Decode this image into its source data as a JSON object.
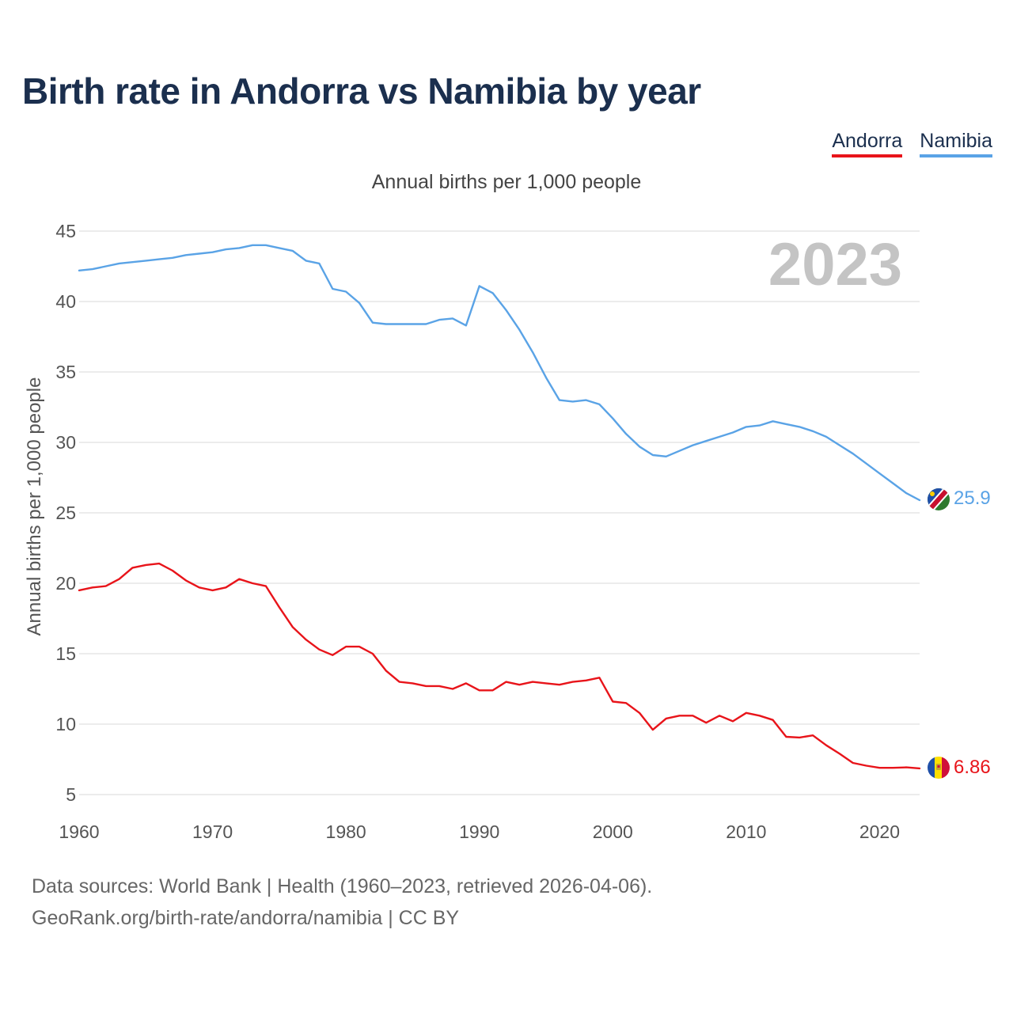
{
  "header": {
    "title": "Birth rate in Andorra vs Namibia by year",
    "subtitle": "Annual births per 1,000 people"
  },
  "legend": [
    {
      "label": "Andorra",
      "color": "#e8141a"
    },
    {
      "label": "Namibia",
      "color": "#5aa3e6"
    }
  ],
  "footer": {
    "line1": "Data sources: World Bank | Health (1960–2023, retrieved 2026-04-06).",
    "line2": "GeoRank.org/birth-rate/andorra/namibia | CC BY"
  },
  "chart_data": {
    "type": "line",
    "title": "Birth rate in Andorra vs Namibia by year",
    "ylabel": "Annual births per 1,000 people",
    "xlabel": "",
    "year_label": "2023",
    "xlim": [
      1960,
      2023
    ],
    "ylim": [
      5,
      45
    ],
    "x_ticks": [
      1960,
      1970,
      1980,
      1990,
      2000,
      2010,
      2020
    ],
    "y_ticks": [
      5,
      10,
      15,
      20,
      25,
      30,
      35,
      40,
      45
    ],
    "grid": true,
    "legend_position": "top-right",
    "x": [
      1960,
      1961,
      1962,
      1963,
      1964,
      1965,
      1966,
      1967,
      1968,
      1969,
      1970,
      1971,
      1972,
      1973,
      1974,
      1975,
      1976,
      1977,
      1978,
      1979,
      1980,
      1981,
      1982,
      1983,
      1984,
      1985,
      1986,
      1987,
      1988,
      1989,
      1990,
      1991,
      1992,
      1993,
      1994,
      1995,
      1996,
      1997,
      1998,
      1999,
      2000,
      2001,
      2002,
      2003,
      2004,
      2005,
      2006,
      2007,
      2008,
      2009,
      2010,
      2011,
      2012,
      2013,
      2014,
      2015,
      2016,
      2017,
      2018,
      2019,
      2020,
      2021,
      2022,
      2023
    ],
    "series": [
      {
        "name": "Andorra",
        "color": "#e8141a",
        "end_label": "6.86",
        "values": [
          19.5,
          19.7,
          19.8,
          20.3,
          21.1,
          21.3,
          21.4,
          20.9,
          20.2,
          19.7,
          19.5,
          19.7,
          20.3,
          20.0,
          19.8,
          18.3,
          16.9,
          16.0,
          15.3,
          14.9,
          15.5,
          15.5,
          15.0,
          13.8,
          13.0,
          12.9,
          12.7,
          12.7,
          12.5,
          12.9,
          12.4,
          12.4,
          13.0,
          12.8,
          13.0,
          12.9,
          12.8,
          13.0,
          13.1,
          13.3,
          11.6,
          11.5,
          10.8,
          9.6,
          10.4,
          10.6,
          10.6,
          10.1,
          10.6,
          10.2,
          10.8,
          10.6,
          10.3,
          9.1,
          9.05,
          9.2,
          8.5,
          7.9,
          7.25,
          7.05,
          6.9,
          6.9,
          6.93,
          6.86
        ]
      },
      {
        "name": "Namibia",
        "color": "#5aa3e6",
        "end_label": "25.9",
        "values": [
          42.2,
          42.3,
          42.5,
          42.7,
          42.8,
          42.9,
          43.0,
          43.1,
          43.3,
          43.4,
          43.5,
          43.7,
          43.8,
          44.0,
          44.0,
          43.8,
          43.6,
          42.9,
          42.7,
          40.9,
          40.7,
          39.9,
          38.5,
          38.4,
          38.4,
          38.4,
          38.4,
          38.7,
          38.8,
          38.3,
          41.1,
          40.6,
          39.4,
          38.0,
          36.4,
          34.6,
          33.0,
          32.9,
          33.0,
          32.7,
          31.7,
          30.6,
          29.7,
          29.1,
          29.0,
          29.4,
          29.8,
          30.1,
          30.4,
          30.7,
          31.1,
          31.2,
          31.5,
          31.3,
          31.1,
          30.8,
          30.4,
          29.8,
          29.2,
          28.5,
          27.8,
          27.1,
          26.4,
          25.9
        ]
      }
    ]
  }
}
